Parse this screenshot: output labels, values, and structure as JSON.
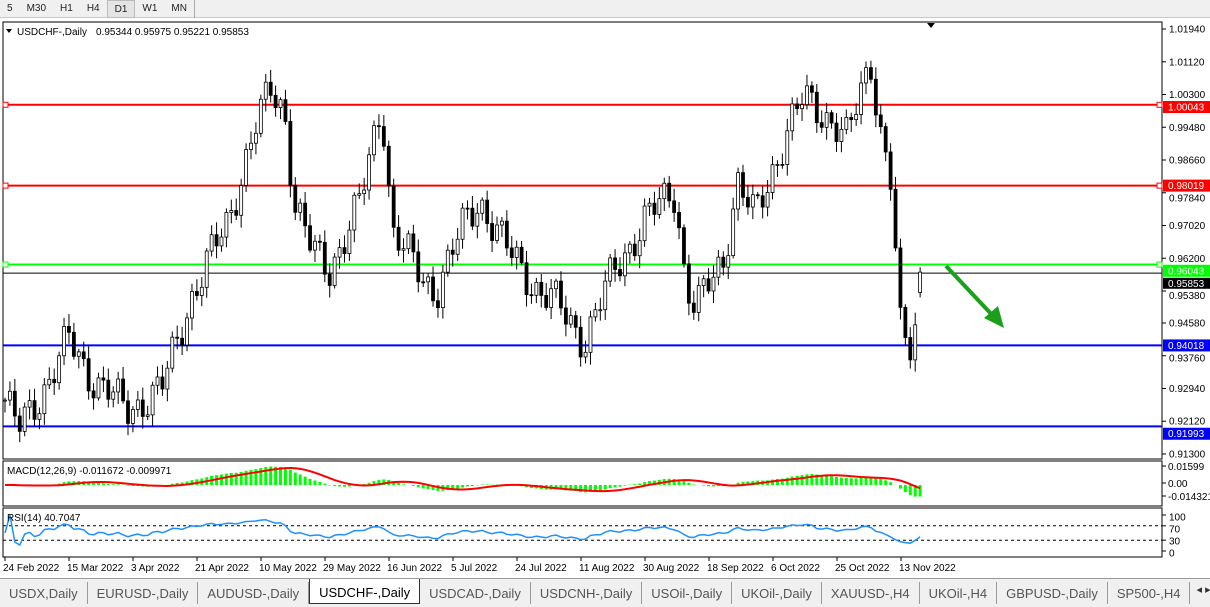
{
  "toolbar": {
    "timeframes": [
      "5",
      "M30",
      "H1",
      "H4",
      "D1",
      "W1",
      "MN"
    ],
    "active": "D1"
  },
  "chart": {
    "symbol_label": "USDCHF-,Daily",
    "ohlc": "0.95344 0.95975 0.95221 0.95853",
    "price_ticks": [
      "1.01940",
      "1.01120",
      "1.00300",
      "0.99480",
      "0.98660",
      "0.97840",
      "0.97020",
      "0.96200",
      "0.95380",
      "0.94580",
      "0.93760",
      "0.92940",
      "0.92120",
      "0.91300"
    ],
    "levels": [
      {
        "price": 1.00043,
        "label": "1.00043",
        "color": "#ff0000"
      },
      {
        "price": 0.98019,
        "label": "0.98019",
        "color": "#ff0000"
      },
      {
        "price": 0.96043,
        "label": "0.96043",
        "color": "#00ff00"
      },
      {
        "price": 0.94018,
        "label": "0.94018",
        "color": "#0000ff"
      },
      {
        "price": 0.91993,
        "label": "0.91993",
        "color": "#0000ff"
      }
    ],
    "current_price": {
      "price": 0.95853,
      "label": "0.95853"
    },
    "arrow_color": "#1aa01a"
  },
  "chart_data": {
    "type": "candlestick",
    "y_range": [
      0.913,
      1.0194
    ],
    "last_bar": {
      "open": 0.95344,
      "high": 0.95975,
      "low": 0.95221,
      "close": 0.95853
    },
    "date_ticks": [
      "24 Feb 2022",
      "15 Mar 2022",
      "3 Apr 2022",
      "21 Apr 2022",
      "10 May 2022",
      "29 May 2022",
      "16 Jun 2022",
      "5 Jul 2022",
      "24 Jul 2022",
      "11 Aug 2022",
      "30 Aug 2022",
      "18 Sep 2022",
      "6 Oct 2022",
      "25 Oct 2022",
      "13 Nov 2022"
    ],
    "close_path": [
      [
        "2022-02-24",
        0.9265
      ],
      [
        "2022-02-28",
        0.919
      ],
      [
        "2022-03-09",
        0.9315
      ],
      [
        "2022-03-15",
        0.9415
      ],
      [
        "2022-03-21",
        0.933
      ],
      [
        "2022-04-01",
        0.924
      ],
      [
        "2022-04-11",
        0.929
      ],
      [
        "2022-04-19",
        0.9515
      ],
      [
        "2022-04-30",
        0.971
      ],
      [
        "2022-05-08",
        0.994
      ],
      [
        "2022-05-13",
        1.004
      ],
      [
        "2022-05-17",
        0.999
      ],
      [
        "2022-05-20",
        0.976
      ],
      [
        "2022-05-25",
        0.964
      ],
      [
        "2022-05-30",
        0.959
      ],
      [
        "2022-06-08",
        0.976
      ],
      [
        "2022-06-14",
        1.0016
      ],
      [
        "2022-06-17",
        0.969
      ],
      [
        "2022-06-26",
        0.9566
      ],
      [
        "2022-06-30",
        0.9541
      ],
      [
        "2022-07-09",
        0.9716
      ],
      [
        "2022-07-13",
        0.9766
      ],
      [
        "2022-07-21",
        0.9641
      ],
      [
        "2022-07-30",
        0.9541
      ],
      [
        "2022-08-03",
        0.9516
      ],
      [
        "2022-08-12",
        0.9415
      ],
      [
        "2022-08-21",
        0.9591
      ],
      [
        "2022-08-30",
        0.9716
      ],
      [
        "2022-09-08",
        0.979
      ],
      [
        "2022-09-11",
        0.9565
      ],
      [
        "2022-09-14",
        0.949
      ],
      [
        "2022-09-22",
        0.9616
      ],
      [
        "2022-09-26",
        0.9815
      ],
      [
        "2022-10-01",
        0.9716
      ],
      [
        "2022-10-10",
        0.994
      ],
      [
        "2022-10-15",
        1.0016
      ],
      [
        "2022-10-24",
        0.9966
      ],
      [
        "2022-10-28",
        0.9915
      ],
      [
        "2022-11-04",
        1.0116
      ],
      [
        "2022-11-07",
        0.994
      ],
      [
        "2022-11-10",
        0.9815
      ],
      [
        "2022-11-13",
        0.9415
      ],
      [
        "2022-11-16",
        0.939
      ],
      [
        "2022-11-20",
        0.95853
      ]
    ],
    "macd": {
      "label": "MACD(12,26,9) -0.011672 -0.009971",
      "ticks": [
        "0.01599",
        "0.00",
        "-0.014321"
      ],
      "hist_color": "#00ff00",
      "signal_color": "#ff0000"
    },
    "rsi": {
      "label": "RSI(14) 40.7047",
      "ticks": [
        "100",
        "70",
        "30",
        "0"
      ],
      "levels": [
        70,
        30
      ],
      "color": "#1e90ff"
    }
  },
  "tabs": {
    "items": [
      "USDX,Daily",
      "EURUSD-,Daily",
      "AUDUSD-,Daily",
      "USDCHF-,Daily",
      "USDCAD-,Daily",
      "USDCNH-,Daily",
      "USOil-,Daily",
      "UKOil-,Daily",
      "XAUUSD-,H4",
      "UKOil-,H4",
      "GBPUSD-,Daily",
      "SP500-,H4"
    ],
    "active": "USDCHF-,Daily",
    "scroll_left": "◂",
    "scroll_right": "▸"
  }
}
